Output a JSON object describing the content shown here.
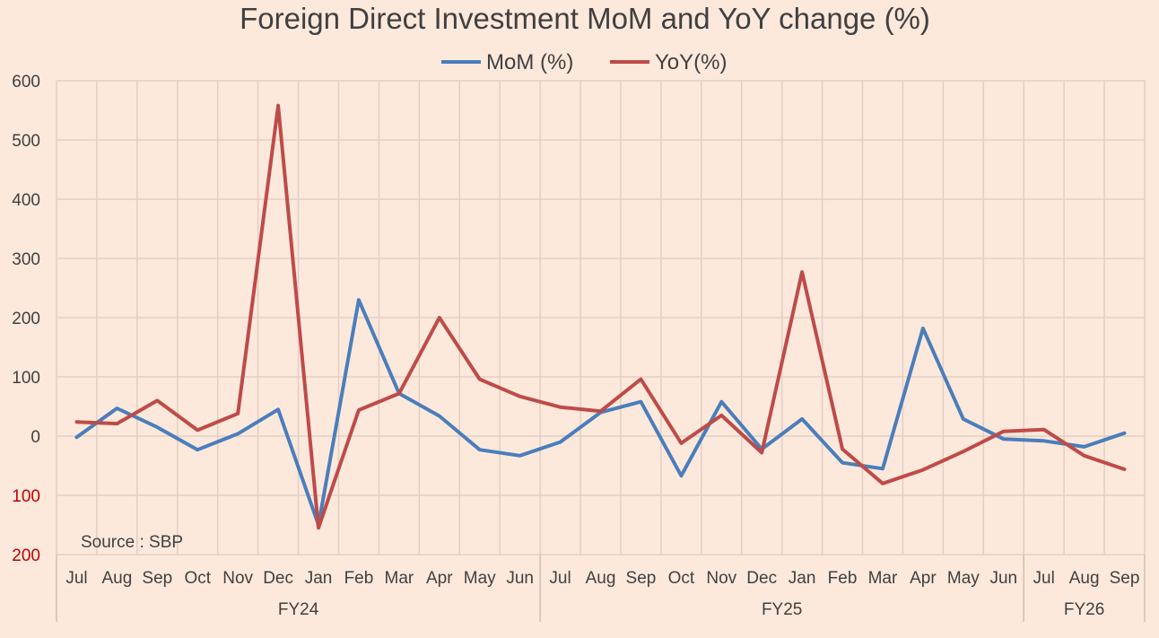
{
  "chart_data": {
    "type": "line",
    "title": "Foreign Direct Investment MoM and YoY change (%)",
    "source": "Source : SBP",
    "categories": [
      "Jul",
      "Aug",
      "Sep",
      "Oct",
      "Nov",
      "Dec",
      "Jan",
      "Feb",
      "Mar",
      "Apr",
      "May",
      "Jun",
      "Jul",
      "Aug",
      "Sep",
      "Oct",
      "Nov",
      "Dec",
      "Jan",
      "Feb",
      "Mar",
      "Apr",
      "May",
      "Jun",
      "Jul",
      "Aug",
      "Sep"
    ],
    "groups": [
      {
        "label": "FY24",
        "count": 12
      },
      {
        "label": "FY25",
        "count": 12
      },
      {
        "label": "FY26",
        "count": 3
      }
    ],
    "y_ticks": [
      {
        "value": 600,
        "label": "600"
      },
      {
        "value": 500,
        "label": "500"
      },
      {
        "value": 400,
        "label": "400"
      },
      {
        "value": 300,
        "label": "300"
      },
      {
        "value": 200,
        "label": "200"
      },
      {
        "value": 100,
        "label": "100"
      },
      {
        "value": 0,
        "label": "0"
      },
      {
        "value": -100,
        "label": "100"
      },
      {
        "value": -200,
        "label": "200"
      }
    ],
    "ylim": [
      -200,
      600
    ],
    "grid": true,
    "legend_position": "top",
    "series": [
      {
        "name": "MoM (%)",
        "color": "#4a7ebb",
        "values": [
          -2,
          47,
          15,
          -23,
          4,
          45,
          -150,
          230,
          72,
          34,
          -23,
          -33,
          -10,
          40,
          58,
          -67,
          58,
          -22,
          29,
          -45,
          -55,
          182,
          29,
          -5,
          -8,
          -18,
          5
        ]
      },
      {
        "name": "YoY(%)",
        "color": "#be4b48",
        "values": [
          24,
          21,
          60,
          10,
          38,
          558,
          -155,
          44,
          72,
          200,
          96,
          67,
          49,
          42,
          96,
          -12,
          35,
          -28,
          277,
          -22,
          -80,
          -57,
          -26,
          8,
          11,
          -33,
          -56
        ]
      }
    ]
  }
}
